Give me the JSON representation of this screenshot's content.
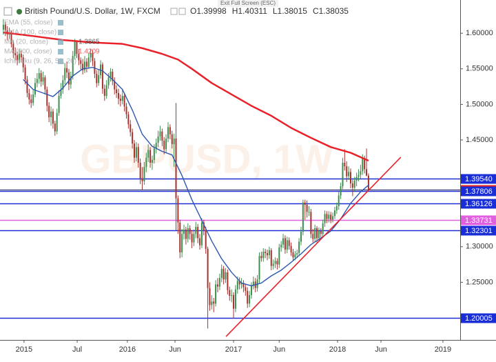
{
  "chart_data": {
    "type": "candlestick",
    "title": "British Pound/U.S. Dollar, 1W, FXCM",
    "header_values": [
      "O1.39998",
      "H1.40311",
      "L1.38015",
      "C1.38035"
    ],
    "watermark": "GBPUSD, 1W",
    "fullscreen_hint": "Exit Full Screen (ESC)",
    "indicators": [
      {
        "label": "EMA (55, close)"
      },
      {
        "label": "EMA (100, close)"
      },
      {
        "label": "MA (20, close)",
        "value": 1.3865,
        "color": "#222222"
      },
      {
        "label": "MA (200, close)",
        "value": 1.4209,
        "color": "#e8212a"
      },
      {
        "label": "Ichimoku (9, 26, 52, 26)"
      }
    ],
    "up_color": "#3c8f4e",
    "down_color": "#a8322d",
    "xlim": [
      -1.7,
      230.2
    ],
    "ylim": [
      1.169,
      1.6467
    ],
    "grid": false,
    "xticks": [
      {
        "value": 10.4,
        "label": "2015"
      },
      {
        "value": 37.2,
        "label": "Jul"
      },
      {
        "value": 62.5,
        "label": "2016"
      },
      {
        "value": 86.5,
        "label": "Jun"
      },
      {
        "value": 116,
        "label": "2017"
      },
      {
        "value": 139,
        "label": "Jun"
      },
      {
        "value": 168.4,
        "label": "2018"
      },
      {
        "value": 190.3,
        "label": "Jun"
      },
      {
        "value": 221.5,
        "label": "2019"
      }
    ],
    "yticks": [
      {
        "value": 1.6,
        "label": "1.60000"
      },
      {
        "value": 1.55,
        "label": "1.55000"
      },
      {
        "value": 1.5,
        "label": "1.50000"
      },
      {
        "value": 1.45,
        "label": "1.45000"
      },
      {
        "value": 1.3,
        "label": "1.30000"
      },
      {
        "value": 1.25,
        "label": "1.25000"
      }
    ],
    "levels": [
      {
        "value": 1.3954,
        "label": "1.39540",
        "color": "#1a2ed8"
      },
      {
        "value": 1.38035,
        "label": "1.38035",
        "color": "#e0201e"
      },
      {
        "value": 1.37806,
        "label": "1.37806",
        "color": "#1a2ed8"
      },
      {
        "value": 1.36126,
        "label": "1.36126",
        "color": "#1a2ed8"
      },
      {
        "value": 1.33731,
        "label": "1.33731",
        "color": "#e060e0"
      },
      {
        "value": 1.32301,
        "label": "1.32301",
        "color": "#1a2ed8"
      },
      {
        "value": 1.20005,
        "label": "1.20005",
        "color": "#1a2ed8"
      }
    ],
    "lines": [
      {
        "name": "MA (200, close)",
        "color": "#e8212a",
        "width": 2.5,
        "x": [
          0,
          15,
          30,
          45,
          60,
          70,
          80,
          88,
          95,
          105,
          115,
          125,
          135,
          145,
          155,
          165,
          175,
          184
        ],
        "values": [
          1.601,
          1.596,
          1.5905,
          1.587,
          1.585,
          1.579,
          1.571,
          1.563,
          1.55,
          1.53,
          1.514,
          1.498,
          1.484,
          1.467,
          1.453,
          1.44,
          1.432,
          1.4209
        ]
      },
      {
        "name": "MA (20, close)",
        "color": "#2b56b0",
        "width": 1.4,
        "x": [
          10,
          15,
          20,
          25,
          30,
          35,
          40,
          45,
          50,
          55,
          60,
          65,
          70,
          75,
          80,
          85,
          90,
          95,
          100,
          105,
          110,
          115,
          120,
          125,
          130,
          135,
          140,
          145,
          150,
          155,
          160,
          165,
          170,
          175,
          180,
          184
        ],
        "values": [
          1.535,
          1.521,
          1.516,
          1.511,
          1.523,
          1.54,
          1.55,
          1.552,
          1.547,
          1.535,
          1.521,
          1.492,
          1.458,
          1.441,
          1.434,
          1.429,
          1.4,
          1.366,
          1.337,
          1.308,
          1.283,
          1.264,
          1.249,
          1.245,
          1.249,
          1.259,
          1.267,
          1.278,
          1.29,
          1.303,
          1.312,
          1.322,
          1.339,
          1.361,
          1.377,
          1.3865
        ]
      },
      {
        "name": "Trend line",
        "color": "#e8212a",
        "width": 1.6,
        "x": [
          112.2,
          200.3
        ],
        "values": [
          1.1738,
          1.4258
        ]
      }
    ],
    "candles": [
      [
        1.605,
        1.62,
        1.598,
        1.612
      ],
      [
        1.612,
        1.616,
        1.596,
        1.604
      ],
      [
        1.604,
        1.61,
        1.59,
        1.598
      ],
      [
        1.598,
        1.608,
        1.592,
        1.601
      ],
      [
        1.601,
        1.604,
        1.58,
        1.585
      ],
      [
        1.585,
        1.59,
        1.565,
        1.572
      ],
      [
        1.572,
        1.58,
        1.562,
        1.569
      ],
      [
        1.569,
        1.574,
        1.555,
        1.562
      ],
      [
        1.562,
        1.578,
        1.558,
        1.571
      ],
      [
        1.571,
        1.576,
        1.559,
        1.566
      ],
      [
        1.566,
        1.57,
        1.545,
        1.552
      ],
      [
        1.552,
        1.556,
        1.528,
        1.535
      ],
      [
        1.535,
        1.54,
        1.51,
        1.516
      ],
      [
        1.516,
        1.522,
        1.5,
        1.507
      ],
      [
        1.507,
        1.514,
        1.495,
        1.502
      ],
      [
        1.502,
        1.52,
        1.498,
        1.514
      ],
      [
        1.514,
        1.537,
        1.51,
        1.53
      ],
      [
        1.53,
        1.544,
        1.524,
        1.536
      ],
      [
        1.536,
        1.551,
        1.529,
        1.544
      ],
      [
        1.544,
        1.548,
        1.525,
        1.532
      ],
      [
        1.532,
        1.546,
        1.527,
        1.538
      ],
      [
        1.538,
        1.541,
        1.514,
        1.521
      ],
      [
        1.521,
        1.525,
        1.49,
        1.498
      ],
      [
        1.498,
        1.503,
        1.475,
        1.482
      ],
      [
        1.482,
        1.497,
        1.47,
        1.49
      ],
      [
        1.49,
        1.494,
        1.466,
        1.473
      ],
      [
        1.473,
        1.477,
        1.456,
        1.462
      ],
      [
        1.462,
        1.494,
        1.458,
        1.488
      ],
      [
        1.488,
        1.52,
        1.484,
        1.512
      ],
      [
        1.512,
        1.53,
        1.508,
        1.521
      ],
      [
        1.521,
        1.541,
        1.515,
        1.534
      ],
      [
        1.534,
        1.558,
        1.528,
        1.551
      ],
      [
        1.551,
        1.56,
        1.537,
        1.545
      ],
      [
        1.545,
        1.55,
        1.52,
        1.528
      ],
      [
        1.528,
        1.546,
        1.522,
        1.54
      ],
      [
        1.54,
        1.575,
        1.535,
        1.568
      ],
      [
        1.568,
        1.592,
        1.563,
        1.588
      ],
      [
        1.588,
        1.59,
        1.565,
        1.571
      ],
      [
        1.571,
        1.578,
        1.555,
        1.562
      ],
      [
        1.562,
        1.566,
        1.549,
        1.557
      ],
      [
        1.557,
        1.564,
        1.542,
        1.548
      ],
      [
        1.548,
        1.568,
        1.544,
        1.56
      ],
      [
        1.56,
        1.565,
        1.545,
        1.553
      ],
      [
        1.553,
        1.572,
        1.55,
        1.566
      ],
      [
        1.566,
        1.578,
        1.559,
        1.572
      ],
      [
        1.572,
        1.576,
        1.554,
        1.561
      ],
      [
        1.561,
        1.565,
        1.537,
        1.543
      ],
      [
        1.543,
        1.548,
        1.524,
        1.53
      ],
      [
        1.53,
        1.549,
        1.526,
        1.541
      ],
      [
        1.541,
        1.562,
        1.536,
        1.556
      ],
      [
        1.556,
        1.559,
        1.515,
        1.522
      ],
      [
        1.522,
        1.528,
        1.505,
        1.512
      ],
      [
        1.512,
        1.534,
        1.508,
        1.527
      ],
      [
        1.527,
        1.544,
        1.522,
        1.538
      ],
      [
        1.538,
        1.551,
        1.532,
        1.546
      ],
      [
        1.546,
        1.55,
        1.527,
        1.533
      ],
      [
        1.533,
        1.538,
        1.514,
        1.521
      ],
      [
        1.521,
        1.527,
        1.509,
        1.516
      ],
      [
        1.516,
        1.522,
        1.5,
        1.508
      ],
      [
        1.508,
        1.514,
        1.497,
        1.505
      ],
      [
        1.505,
        1.52,
        1.5,
        1.512
      ],
      [
        1.512,
        1.516,
        1.49,
        1.497
      ],
      [
        1.497,
        1.502,
        1.48,
        1.486
      ],
      [
        1.486,
        1.49,
        1.466,
        1.472
      ],
      [
        1.472,
        1.478,
        1.455,
        1.461
      ],
      [
        1.461,
        1.466,
        1.438,
        1.445
      ],
      [
        1.445,
        1.45,
        1.418,
        1.425
      ],
      [
        1.425,
        1.447,
        1.42,
        1.44
      ],
      [
        1.44,
        1.445,
        1.411,
        1.418
      ],
      [
        1.418,
        1.424,
        1.388,
        1.396
      ],
      [
        1.396,
        1.412,
        1.38,
        1.392
      ],
      [
        1.392,
        1.419,
        1.387,
        1.412
      ],
      [
        1.412,
        1.432,
        1.405,
        1.425
      ],
      [
        1.425,
        1.444,
        1.419,
        1.436
      ],
      [
        1.436,
        1.44,
        1.411,
        1.418
      ],
      [
        1.418,
        1.428,
        1.408,
        1.422
      ],
      [
        1.422,
        1.444,
        1.417,
        1.438
      ],
      [
        1.438,
        1.452,
        1.431,
        1.446
      ],
      [
        1.446,
        1.463,
        1.44,
        1.455
      ],
      [
        1.455,
        1.47,
        1.449,
        1.462
      ],
      [
        1.462,
        1.466,
        1.441,
        1.449
      ],
      [
        1.449,
        1.454,
        1.43,
        1.437
      ],
      [
        1.437,
        1.458,
        1.432,
        1.452
      ],
      [
        1.452,
        1.475,
        1.447,
        1.468
      ],
      [
        1.468,
        1.472,
        1.451,
        1.458
      ],
      [
        1.458,
        1.463,
        1.438,
        1.444
      ],
      [
        1.444,
        1.459,
        1.412,
        1.452
      ],
      [
        1.452,
        1.502,
        1.323,
        1.368
      ],
      [
        1.368,
        1.372,
        1.318,
        1.334
      ],
      [
        1.334,
        1.338,
        1.284,
        1.292
      ],
      [
        1.292,
        1.325,
        1.285,
        1.318
      ],
      [
        1.318,
        1.331,
        1.31,
        1.324
      ],
      [
        1.324,
        1.328,
        1.303,
        1.311
      ],
      [
        1.311,
        1.333,
        1.306,
        1.326
      ],
      [
        1.326,
        1.33,
        1.31,
        1.318
      ],
      [
        1.318,
        1.323,
        1.298,
        1.306
      ],
      [
        1.306,
        1.324,
        1.301,
        1.318
      ],
      [
        1.318,
        1.335,
        1.312,
        1.328
      ],
      [
        1.328,
        1.332,
        1.305,
        1.312
      ],
      [
        1.312,
        1.318,
        1.296,
        1.302
      ],
      [
        1.302,
        1.34,
        1.298,
        1.334
      ],
      [
        1.334,
        1.338,
        1.316,
        1.323
      ],
      [
        1.323,
        1.328,
        1.29,
        1.297
      ],
      [
        1.297,
        1.3,
        1.185,
        1.242
      ],
      [
        1.242,
        1.25,
        1.21,
        1.218
      ],
      [
        1.218,
        1.232,
        1.212,
        1.223
      ],
      [
        1.223,
        1.228,
        1.208,
        1.22
      ],
      [
        1.22,
        1.253,
        1.216,
        1.247
      ],
      [
        1.247,
        1.256,
        1.236,
        1.244
      ],
      [
        1.244,
        1.262,
        1.239,
        1.256
      ],
      [
        1.256,
        1.275,
        1.25,
        1.269
      ],
      [
        1.269,
        1.273,
        1.247,
        1.254
      ],
      [
        1.254,
        1.27,
        1.249,
        1.264
      ],
      [
        1.264,
        1.268,
        1.233,
        1.239
      ],
      [
        1.239,
        1.244,
        1.224,
        1.231
      ],
      [
        1.231,
        1.24,
        1.222,
        1.232
      ],
      [
        1.232,
        1.236,
        1.199,
        1.213
      ],
      [
        1.213,
        1.246,
        1.208,
        1.24
      ],
      [
        1.24,
        1.258,
        1.234,
        1.252
      ],
      [
        1.252,
        1.257,
        1.24,
        1.247
      ],
      [
        1.247,
        1.256,
        1.241,
        1.249
      ],
      [
        1.249,
        1.253,
        1.236,
        1.243
      ],
      [
        1.243,
        1.248,
        1.231,
        1.238
      ],
      [
        1.238,
        1.243,
        1.214,
        1.22
      ],
      [
        1.22,
        1.238,
        1.215,
        1.232
      ],
      [
        1.232,
        1.25,
        1.227,
        1.245
      ],
      [
        1.245,
        1.258,
        1.24,
        1.251
      ],
      [
        1.251,
        1.256,
        1.236,
        1.242
      ],
      [
        1.242,
        1.26,
        1.237,
        1.254
      ],
      [
        1.254,
        1.292,
        1.249,
        1.287
      ],
      [
        1.287,
        1.293,
        1.279,
        1.284
      ],
      [
        1.284,
        1.298,
        1.279,
        1.293
      ],
      [
        1.293,
        1.297,
        1.284,
        1.291
      ],
      [
        1.291,
        1.296,
        1.281,
        1.288
      ],
      [
        1.288,
        1.3,
        1.283,
        1.295
      ],
      [
        1.295,
        1.298,
        1.267,
        1.273
      ],
      [
        1.273,
        1.282,
        1.268,
        1.276
      ],
      [
        1.276,
        1.285,
        1.27,
        1.28
      ],
      [
        1.28,
        1.284,
        1.268,
        1.275
      ],
      [
        1.275,
        1.304,
        1.27,
        1.299
      ],
      [
        1.299,
        1.308,
        1.293,
        1.303
      ],
      [
        1.303,
        1.318,
        1.298,
        1.312
      ],
      [
        1.312,
        1.316,
        1.29,
        1.296
      ],
      [
        1.296,
        1.314,
        1.291,
        1.309
      ],
      [
        1.309,
        1.313,
        1.296,
        1.301
      ],
      [
        1.301,
        1.306,
        1.287,
        1.292
      ],
      [
        1.292,
        1.297,
        1.28,
        1.285
      ],
      [
        1.285,
        1.294,
        1.281,
        1.289
      ],
      [
        1.289,
        1.296,
        1.284,
        1.291
      ],
      [
        1.291,
        1.312,
        1.287,
        1.307
      ],
      [
        1.307,
        1.328,
        1.302,
        1.321
      ],
      [
        1.321,
        1.366,
        1.316,
        1.362
      ],
      [
        1.362,
        1.366,
        1.338,
        1.359
      ],
      [
        1.359,
        1.365,
        1.341,
        1.349
      ],
      [
        1.349,
        1.357,
        1.343,
        1.349
      ],
      [
        1.349,
        1.353,
        1.312,
        1.318
      ],
      [
        1.318,
        1.325,
        1.306,
        1.311
      ],
      [
        1.311,
        1.331,
        1.307,
        1.326
      ],
      [
        1.326,
        1.329,
        1.306,
        1.312
      ],
      [
        1.312,
        1.327,
        1.308,
        1.322
      ],
      [
        1.322,
        1.326,
        1.312,
        1.318
      ],
      [
        1.318,
        1.338,
        1.314,
        1.333
      ],
      [
        1.333,
        1.351,
        1.328,
        1.346
      ],
      [
        1.346,
        1.35,
        1.333,
        1.339
      ],
      [
        1.339,
        1.35,
        1.334,
        1.345
      ],
      [
        1.345,
        1.349,
        1.333,
        1.338
      ],
      [
        1.338,
        1.348,
        1.334,
        1.343
      ],
      [
        1.343,
        1.356,
        1.339,
        1.351
      ],
      [
        1.351,
        1.362,
        1.346,
        1.357
      ],
      [
        1.357,
        1.377,
        1.352,
        1.372
      ],
      [
        1.372,
        1.39,
        1.367,
        1.385
      ],
      [
        1.385,
        1.425,
        1.381,
        1.418
      ],
      [
        1.418,
        1.437,
        1.407,
        1.413
      ],
      [
        1.413,
        1.42,
        1.391,
        1.399
      ],
      [
        1.399,
        1.413,
        1.394,
        1.405
      ],
      [
        1.405,
        1.41,
        1.382,
        1.389
      ],
      [
        1.389,
        1.394,
        1.371,
        1.383
      ],
      [
        1.383,
        1.398,
        1.378,
        1.393
      ],
      [
        1.393,
        1.404,
        1.385,
        1.398
      ],
      [
        1.398,
        1.409,
        1.392,
        1.401
      ],
      [
        1.401,
        1.415,
        1.396,
        1.406
      ],
      [
        1.406,
        1.43,
        1.401,
        1.424
      ],
      [
        1.424,
        1.428,
        1.403,
        1.409
      ],
      [
        1.409,
        1.438,
        1.399,
        1.4
      ],
      [
        1.39998,
        1.40311,
        1.38015,
        1.38035
      ]
    ]
  }
}
